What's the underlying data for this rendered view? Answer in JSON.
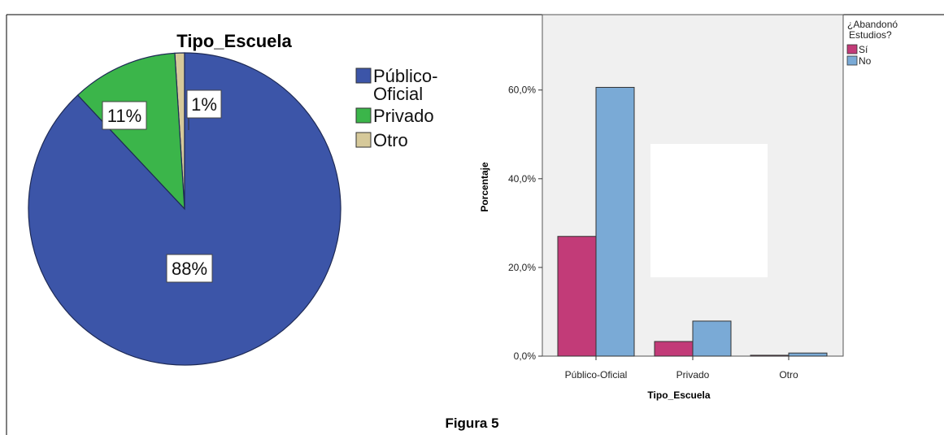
{
  "caption": "Figura 5",
  "chart_data": [
    {
      "type": "pie",
      "title": "Tipo_Escuela",
      "slices": [
        {
          "label": "Público-Oficial",
          "value": 88,
          "display": "88%",
          "color": "#3c55a8"
        },
        {
          "label": "Privado",
          "value": 11,
          "display": "11%",
          "color": "#3bb54a"
        },
        {
          "label": "Otro",
          "value": 1,
          "display": "1%",
          "color": "#d6c99a"
        }
      ],
      "legend_lines": [
        [
          "Público-",
          "Oficial"
        ],
        [
          "Privado"
        ],
        [
          "Otro"
        ]
      ],
      "legend_placement": "right"
    },
    {
      "type": "bar",
      "categories": [
        "Público-Oficial",
        "Privado",
        "Otro"
      ],
      "xlabel": "Tipo_Escuela",
      "ylabel": "Porcentaje",
      "ylim": [
        0,
        77
      ],
      "yticks": [
        "0,0%",
        "20,0%",
        "40,0%",
        "60,0%"
      ],
      "ytick_values": [
        0,
        20,
        40,
        60
      ],
      "legend_title": [
        "¿Abandonó",
        "Estudios?"
      ],
      "legend_placement": "top-right",
      "series": [
        {
          "name": "Sí",
          "values": [
            27.0,
            3.3,
            0.2
          ],
          "color": "#c23b78"
        },
        {
          "name": "No",
          "values": [
            60.6,
            7.9,
            0.7
          ],
          "color": "#7aaad6"
        }
      ],
      "plot_background": "#f0f0f0"
    }
  ]
}
